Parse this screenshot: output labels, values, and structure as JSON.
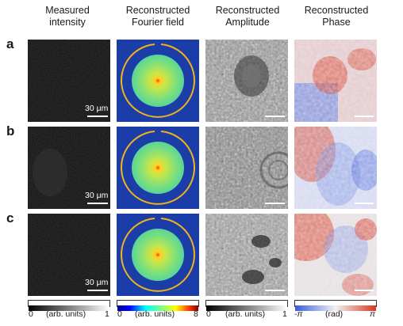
{
  "columns": [
    {
      "title": "Measured\nintensity"
    },
    {
      "title": "Reconstructed\nFourier field"
    },
    {
      "title": "Reconstructed\nAmplitude"
    },
    {
      "title": "Reconstructed\nPhase"
    }
  ],
  "rows": [
    {
      "label": "a"
    },
    {
      "label": "b"
    },
    {
      "label": "c"
    }
  ],
  "scalebar_text": "30 μm",
  "colorbars": [
    {
      "min": "0",
      "unit": "(arb. units)",
      "max": "1"
    },
    {
      "min": "0",
      "unit": "(arb. units)",
      "max": "8"
    },
    {
      "min": "0",
      "unit": "(arb. units)",
      "max": "1"
    },
    {
      "min": "-π",
      "unit": "(rad)",
      "max": "π"
    }
  ],
  "colors": {
    "fourier_background": "#1b3da8",
    "fourier_ring": "#f2b21a",
    "phase_low": "#3a5bd9",
    "phase_high": "#d8371e"
  }
}
